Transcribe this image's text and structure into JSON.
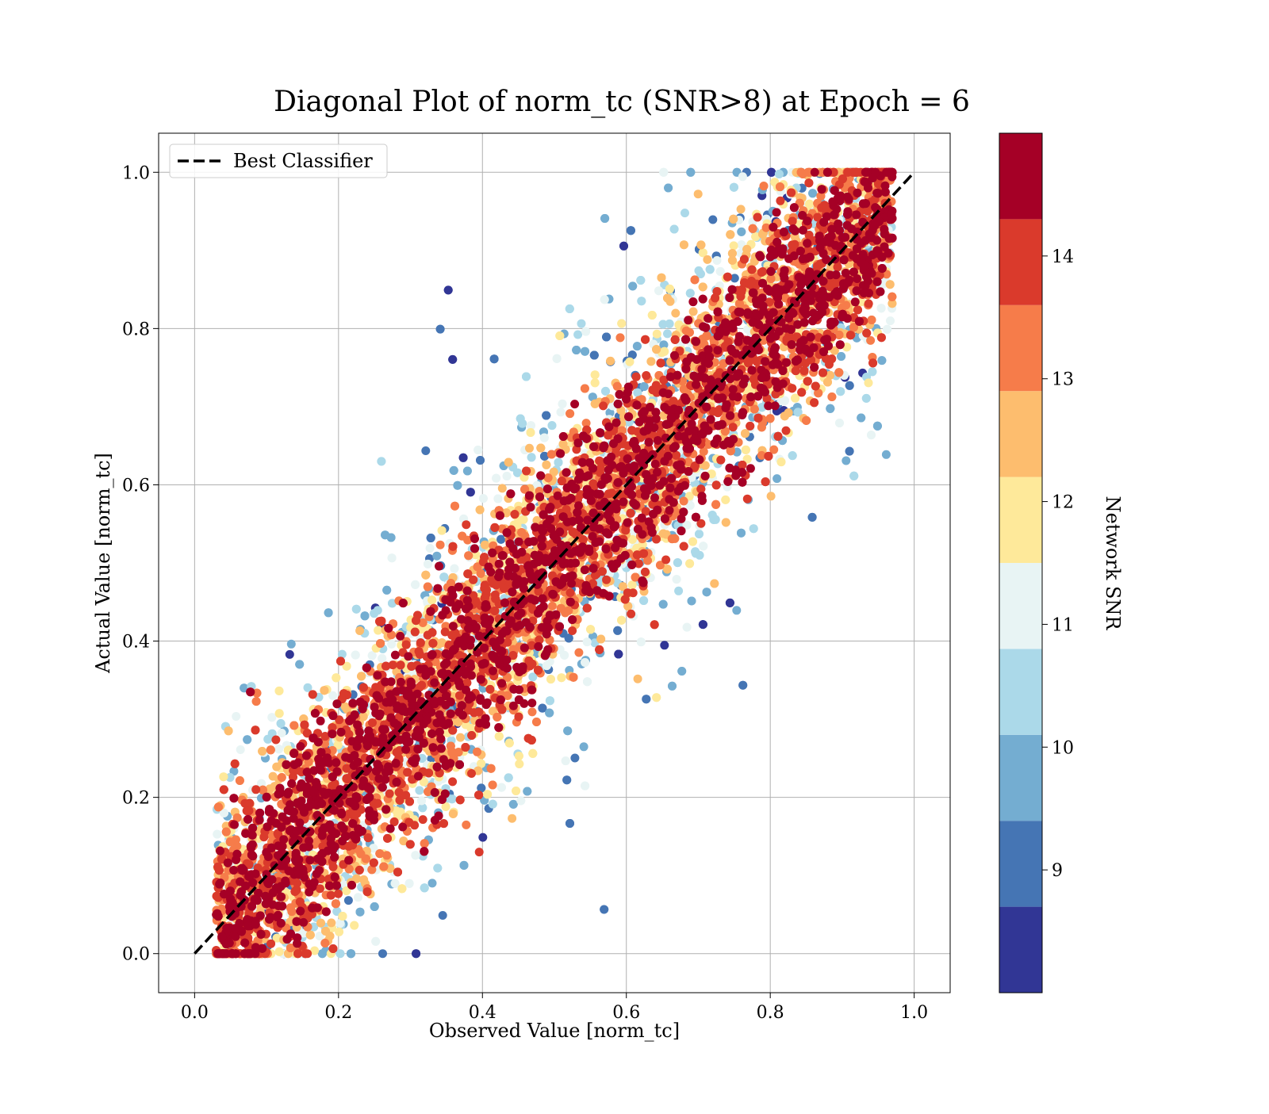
{
  "chart_data": {
    "type": "scatter",
    "title": "Diagonal Plot of norm_tc (SNR>8) at Epoch = 6",
    "xlabel": "Observed Value [norm_tc]",
    "ylabel": "Actual Value [norm_tc]",
    "xlim": [
      -0.05,
      1.05
    ],
    "ylim": [
      -0.05,
      1.05
    ],
    "x_ticks": [
      "0.0",
      "0.2",
      "0.4",
      "0.6",
      "0.8",
      "1.0"
    ],
    "y_ticks": [
      "0.0",
      "0.2",
      "0.4",
      "0.6",
      "0.8",
      "1.0"
    ],
    "grid": true,
    "legend": {
      "position": "upper-left",
      "entries": [
        {
          "label": "Best Classifier",
          "style": "dashed",
          "color": "#000000"
        }
      ]
    },
    "reference_line": {
      "label": "Best Classifier",
      "x": [
        0.0,
        1.0
      ],
      "y": [
        0.0,
        1.0
      ]
    },
    "colorbar": {
      "label": "Network SNR",
      "range": [
        8,
        15
      ],
      "ticks": [
        "9",
        "10",
        "11",
        "12",
        "13",
        "14"
      ],
      "tick_values": [
        9,
        10,
        11,
        12,
        13,
        14
      ],
      "colors": [
        "#313695",
        "#4575b4",
        "#74add1",
        "#abd9e9",
        "#e0f3f8",
        "#ffffbf",
        "#fee090",
        "#fdae61",
        "#f46d43",
        "#d73027",
        "#a50026"
      ]
    },
    "scatter_description": {
      "x_range": [
        0.03,
        0.97
      ],
      "y_range": [
        0.0,
        1.0
      ],
      "pattern": "dense band along the diagonal y = x; high SNR points (14+) concentrated near the diagonal, lower SNR points scattered farther from it"
    }
  }
}
